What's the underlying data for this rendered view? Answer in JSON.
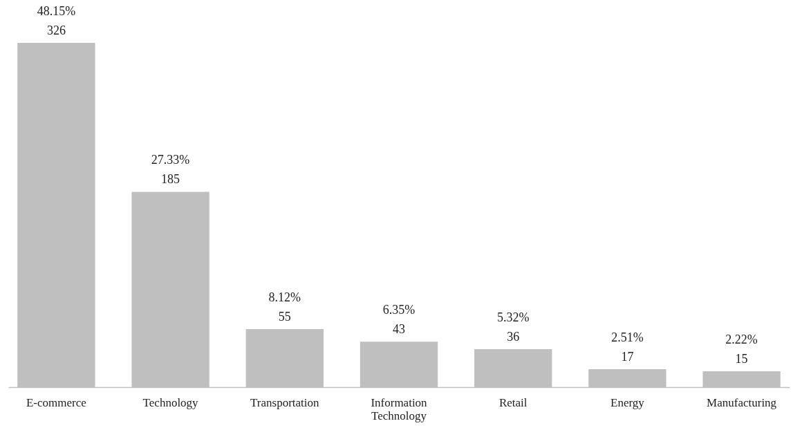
{
  "chart_data": {
    "type": "bar",
    "categories": [
      "E-commerce",
      "Technology",
      "Transportation",
      "Information Technology",
      "Retail",
      "Energy",
      "Manufacturing"
    ],
    "values": [
      326,
      185,
      55,
      43,
      36,
      17,
      15
    ],
    "value_labels": [
      "48.15%\n326",
      "27.33%\n185",
      "8.12%\n55",
      "6.35%\n43",
      "5.32%\n36",
      "2.51%\n17",
      "2.22%\n15"
    ],
    "color": "#bfbfbf",
    "tick_labels": "x",
    "grid": false
  }
}
